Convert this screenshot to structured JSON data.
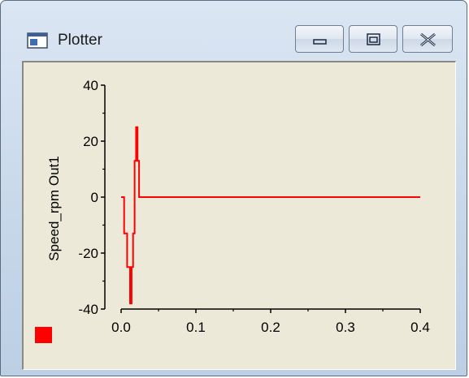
{
  "window": {
    "title": "Plotter"
  },
  "chart_data": {
    "type": "line",
    "ylabel": "Speed_rpm Out1",
    "xlim": [
      0.0,
      0.4
    ],
    "ylim": [
      -40,
      40
    ],
    "x_ticks": [
      "0.0",
      "0.1",
      "0.2",
      "0.3",
      "0.4"
    ],
    "y_ticks": [
      "40",
      "20",
      "0",
      "-20",
      "-40"
    ],
    "series": [
      {
        "color": "#ff0000",
        "x": [
          0.0,
          0.004,
          0.004,
          0.008,
          0.008,
          0.012,
          0.012,
          0.014,
          0.014,
          0.016,
          0.016,
          0.018,
          0.018,
          0.02,
          0.02,
          0.022,
          0.022,
          0.024,
          0.024,
          0.4
        ],
        "y": [
          0,
          0,
          -13,
          -13,
          -25,
          -25,
          -38,
          -38,
          -25,
          -25,
          -13,
          -13,
          13,
          13,
          25,
          25,
          13,
          13,
          0,
          0
        ]
      }
    ],
    "legend_color": "#ff0000"
  }
}
